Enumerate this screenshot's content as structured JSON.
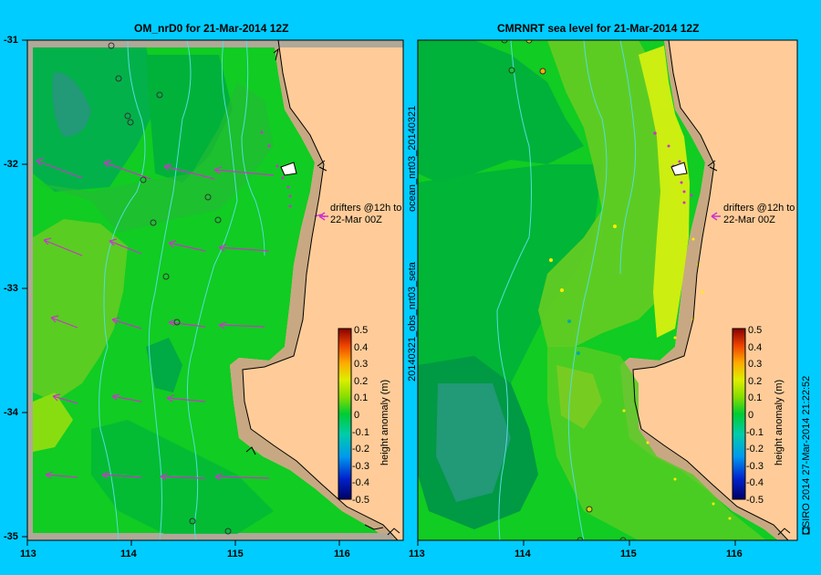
{
  "panels": [
    {
      "title": "OM_nrD0 for 21-Mar-2014 12Z"
    },
    {
      "title": "CMRNRT sea level  for 21-Mar-2014 12Z"
    }
  ],
  "y_ticks": [
    "-31",
    "-32",
    "-33",
    "-34",
    "-35"
  ],
  "x_ticks_left": [
    "113",
    "114",
    "115",
    "116"
  ],
  "x_ticks_right": [
    "113",
    "114",
    "115",
    "116"
  ],
  "drifters_label_line1": "drifters @12h to",
  "drifters_label_line2": "22-Mar 00Z",
  "colorbar": {
    "title": "height anomaly (m)",
    "ticks": [
      "0.5",
      "0.4",
      "0.3",
      "0.2",
      "0.1",
      "0",
      "-0.1",
      "-0.2",
      "-0.3",
      "-0.4",
      "-0.5"
    ]
  },
  "side_text_mid_upper": "ocean_nrt03_20140321",
  "side_text_mid_lower": "20140321_obs_nrt03_seta",
  "side_text_right": "CSIRO 2014   27-Mar-2014 21:22:52",
  "colors": {
    "background": "#00ccff",
    "land": "#ffcc99",
    "shelf": "#c8a882",
    "ocean_base": "#11cc22",
    "drifter_arrow": "#cc33cc"
  }
}
